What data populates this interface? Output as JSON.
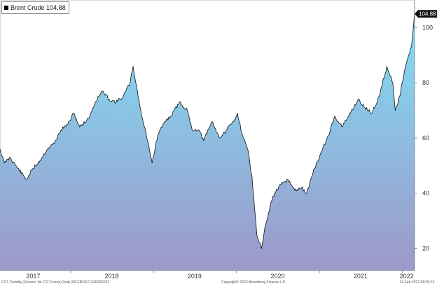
{
  "chart_data": {
    "type": "area",
    "legend": [
      {
        "name": "Brent Crude",
        "value": "104.88"
      }
    ],
    "last_value_label": "104.88",
    "y_ticks": [
      "20",
      "40",
      "60",
      "80",
      "100"
    ],
    "x_ticks": [
      "2017",
      "2018",
      "2019",
      "2020",
      "2021",
      "2022"
    ],
    "ylim": [
      12,
      110
    ],
    "xlim": [
      "2017-02-24",
      "2022-02-24"
    ],
    "grid": false,
    "legend_position": "top-left",
    "gradient_colors": {
      "top": "#7fdff5",
      "bottom": "#9d98c9"
    },
    "line_color": "#111111",
    "series": [
      {
        "name": "Brent Crude",
        "x": [
          "2017-02-24",
          "2017-03-15",
          "2017-04-10",
          "2017-05-05",
          "2017-06-20",
          "2017-07-20",
          "2017-08-20",
          "2017-09-20",
          "2017-10-20",
          "2017-11-20",
          "2017-12-20",
          "2018-01-15",
          "2018-02-10",
          "2018-03-20",
          "2018-04-20",
          "2018-05-20",
          "2018-06-20",
          "2018-07-20",
          "2018-08-20",
          "2018-09-20",
          "2018-10-03",
          "2018-11-10",
          "2018-12-10",
          "2018-12-26",
          "2019-01-20",
          "2019-02-20",
          "2019-03-20",
          "2019-04-25",
          "2019-05-30",
          "2019-06-20",
          "2019-07-20",
          "2019-08-10",
          "2019-09-16",
          "2019-10-20",
          "2019-11-20",
          "2019-12-20",
          "2020-01-06",
          "2020-01-25",
          "2020-02-20",
          "2020-03-10",
          "2020-03-31",
          "2020-04-21",
          "2020-05-10",
          "2020-06-10",
          "2020-07-15",
          "2020-08-15",
          "2020-09-15",
          "2020-10-15",
          "2020-11-05",
          "2020-12-10",
          "2021-01-10",
          "2021-02-10",
          "2021-03-10",
          "2021-04-10",
          "2021-05-10",
          "2021-06-20",
          "2021-07-20",
          "2021-08-20",
          "2021-09-20",
          "2021-10-25",
          "2021-11-20",
          "2021-12-01",
          "2021-12-20",
          "2022-01-10",
          "2022-01-25",
          "2022-02-10",
          "2022-02-24"
        ],
        "values": [
          56,
          51,
          53,
          50,
          45,
          49,
          52,
          56,
          58,
          63,
          65,
          69,
          64,
          67,
          73,
          77,
          74,
          73,
          75,
          80,
          86,
          68,
          58,
          51,
          61,
          66,
          68,
          73,
          70,
          63,
          63,
          59,
          66,
          60,
          63,
          66,
          69,
          62,
          56,
          46,
          25,
          20,
          29,
          39,
          43,
          45,
          41,
          42,
          40,
          49,
          55,
          61,
          68,
          64,
          68,
          74,
          71,
          69,
          75,
          86,
          80,
          70,
          75,
          84,
          89,
          93,
          105
        ]
      }
    ]
  },
  "footer": {
    "left": "CO1 Comdty (Generic 1st 'CO' Future)  Daily 25FEB2017-24FEB2022",
    "center": "Copyright© 2022 Bloomberg Finance L.P.",
    "right": "24-Feb-2022 08:25:23"
  }
}
